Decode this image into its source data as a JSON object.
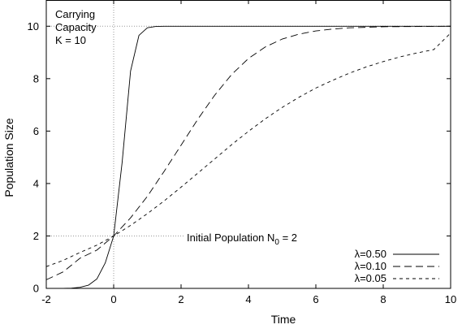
{
  "chart_data": {
    "type": "line",
    "title": "",
    "xlabel": "Time",
    "ylabel": "Population Size",
    "xlim": [
      -2,
      10
    ],
    "ylim": [
      0,
      11
    ],
    "x_ticks": [
      -2,
      0,
      2,
      4,
      6,
      8,
      10
    ],
    "y_ticks": [
      0,
      2,
      4,
      6,
      8,
      10
    ],
    "grid": false,
    "legend_position": "bottom-right",
    "carrying_capacity": 10,
    "initial_population": 2,
    "x_step": 0.25,
    "series": [
      {
        "name": "λ=0.50",
        "lambda": 0.5,
        "dash": "solid",
        "points": [
          [
            -2,
            0.0
          ],
          [
            -1.75,
            0.0
          ],
          [
            -1.5,
            0.0
          ],
          [
            -1.25,
            0.01
          ],
          [
            -1,
            0.04
          ],
          [
            -0.75,
            0.12
          ],
          [
            -0.5,
            0.36
          ],
          [
            -0.25,
            0.97
          ],
          [
            0,
            2.0
          ],
          [
            0.25,
            4.8
          ],
          [
            0.5,
            8.29
          ],
          [
            0.75,
            9.65
          ],
          [
            1,
            9.94
          ],
          [
            1.25,
            9.99
          ],
          [
            1.5,
            10.0
          ],
          [
            2,
            10.0
          ],
          [
            3,
            10.0
          ],
          [
            4,
            10.0
          ],
          [
            6,
            10.0
          ],
          [
            8,
            10.0
          ],
          [
            10,
            10.0
          ]
        ]
      },
      {
        "name": "λ=0.10",
        "lambda": 0.1,
        "dash": "long-dash",
        "points": [
          [
            -2,
            0.33
          ],
          [
            -1.5,
            0.63
          ],
          [
            -1,
            1.15
          ],
          [
            -0.5,
            1.46
          ],
          [
            0,
            2.0
          ],
          [
            0.5,
            2.69
          ],
          [
            1,
            3.51
          ],
          [
            1.5,
            4.47
          ],
          [
            2,
            5.46
          ],
          [
            2.5,
            6.46
          ],
          [
            3,
            7.37
          ],
          [
            3.5,
            8.16
          ],
          [
            4,
            8.77
          ],
          [
            4.5,
            9.21
          ],
          [
            5,
            9.51
          ],
          [
            5.5,
            9.7
          ],
          [
            6,
            9.82
          ],
          [
            6.5,
            9.89
          ],
          [
            7,
            9.94
          ],
          [
            7.5,
            9.96
          ],
          [
            8,
            9.98
          ],
          [
            9,
            9.99
          ],
          [
            10,
            10.0
          ]
        ]
      },
      {
        "name": "λ=0.05",
        "lambda": 0.05,
        "dash": "short-dash",
        "points": [
          [
            -2,
            0.83
          ],
          [
            -1.5,
            1.07
          ],
          [
            -1,
            1.37
          ],
          [
            -0.5,
            1.65
          ],
          [
            0,
            2.0
          ],
          [
            0.5,
            2.4
          ],
          [
            1,
            2.85
          ],
          [
            1.5,
            3.34
          ],
          [
            2,
            3.86
          ],
          [
            2.5,
            4.4
          ],
          [
            3,
            4.94
          ],
          [
            3.5,
            5.48
          ],
          [
            4,
            5.99
          ],
          [
            4.5,
            6.47
          ],
          [
            5,
            6.9
          ],
          [
            5.5,
            7.29
          ],
          [
            6,
            7.64
          ],
          [
            6.5,
            7.94
          ],
          [
            7,
            8.21
          ],
          [
            7.5,
            8.45
          ],
          [
            8,
            8.65
          ],
          [
            8.5,
            8.83
          ],
          [
            9,
            8.98
          ],
          [
            9.5,
            9.11
          ],
          [
            10,
            9.74
          ]
        ]
      }
    ],
    "annotations": {
      "carrying_capacity_line1": "Carrying",
      "carrying_capacity_line2": "Capacity",
      "carrying_capacity_line3": "K = 10",
      "initial_population_prefix": "Initial Population N",
      "initial_population_sub": "0",
      "initial_population_suffix": " = 2"
    }
  }
}
